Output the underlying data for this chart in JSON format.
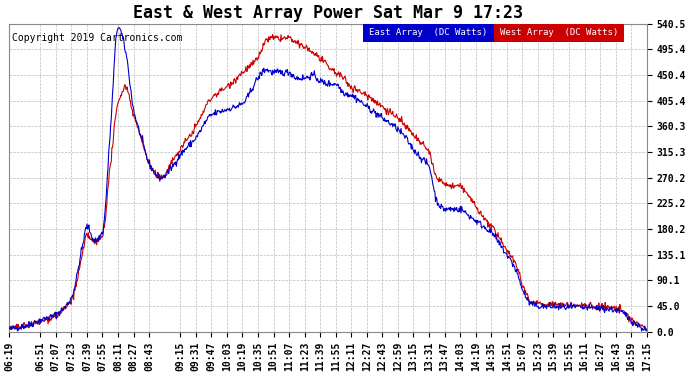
{
  "title": "East & West Array Power Sat Mar 9 17:23",
  "copyright": "Copyright 2019 Cartronics.com",
  "east_label": "East Array  (DC Watts)",
  "west_label": "West Array  (DC Watts)",
  "east_color": "#0000cc",
  "west_color": "#cc0000",
  "legend_east_bg": "#0000cc",
  "legend_west_bg": "#cc0000",
  "legend_text_color": "#ffffff",
  "background_color": "#ffffff",
  "grid_color": "#bbbbbb",
  "yticks": [
    0.0,
    45.0,
    90.1,
    135.1,
    180.2,
    225.2,
    270.2,
    315.3,
    360.3,
    405.4,
    450.4,
    495.4,
    540.5
  ],
  "ymax": 540.5,
  "ymin": 0.0,
  "title_fontsize": 12,
  "copyright_fontsize": 7,
  "tick_fontsize": 7,
  "xtick_labels": [
    "06:19",
    "06:51",
    "07:07",
    "07:23",
    "07:39",
    "07:55",
    "08:11",
    "08:27",
    "08:43",
    "09:15",
    "09:31",
    "09:47",
    "10:03",
    "10:19",
    "10:35",
    "10:51",
    "11:07",
    "11:23",
    "11:39",
    "11:55",
    "12:11",
    "12:27",
    "12:43",
    "12:59",
    "13:15",
    "13:31",
    "13:47",
    "14:03",
    "14:19",
    "14:35",
    "14:51",
    "15:07",
    "15:23",
    "15:39",
    "15:55",
    "16:11",
    "16:27",
    "16:43",
    "16:59",
    "17:15"
  ]
}
